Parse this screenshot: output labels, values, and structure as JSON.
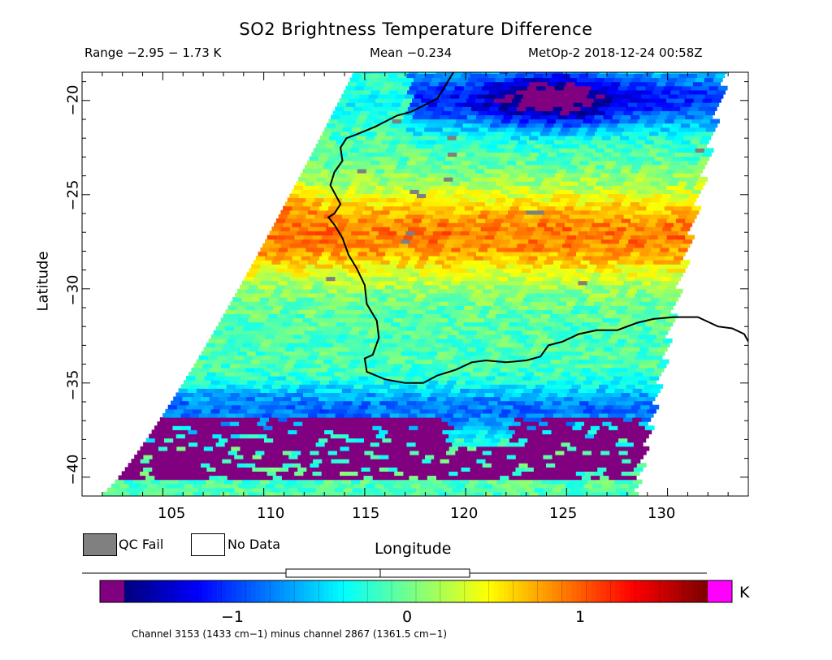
{
  "title": "SO2 Brightness Temperature Difference",
  "range_text": "Range −2.95 − 1.73 K",
  "mean_text": "Mean −0.234",
  "satellite_text": "MetOp-2 2018-12-24 00:58Z",
  "axes": {
    "x_label": "Longitude",
    "y_label": "Latitude",
    "x_ticks": [
      "105",
      "110",
      "115",
      "120",
      "125",
      "130"
    ],
    "y_ticks": [
      "−20",
      "−25",
      "−30",
      "−35",
      "−40"
    ]
  },
  "legend": {
    "qc_fail": "QC Fail",
    "no_data": "No Data",
    "qc_fail_color": "#808080",
    "no_data_color": "#ffffff"
  },
  "colorbar": {
    "unit": "K",
    "tick_labels": [
      "−1",
      "0",
      "1"
    ],
    "underflow_color": "#800080",
    "overflow_color": "#ff00ff",
    "caption": "Channel 3153 (1433 cm−1) minus channel 2867 (1361.5 cm−1)"
  },
  "map_data": {
    "lon_range": [
      101,
      134
    ],
    "lat_range": [
      -41,
      -18.5
    ],
    "value_range": [
      -1.7,
      1.73
    ],
    "coastline_color": "#000000"
  }
}
